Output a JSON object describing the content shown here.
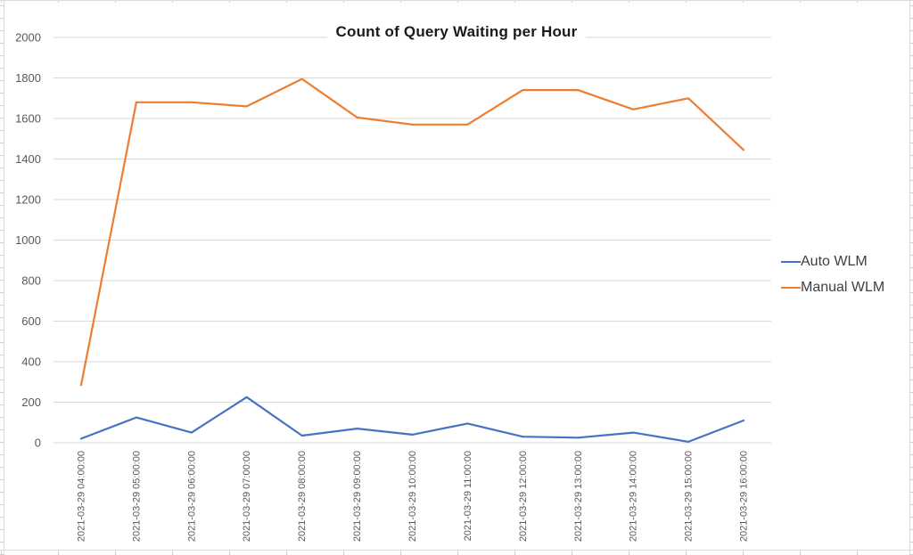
{
  "chart_data": {
    "type": "line",
    "title": "Count of Query Waiting per Hour",
    "categories": [
      "2021-03-29 04:00:00",
      "2021-03-29 05:00:00",
      "2021-03-29 06:00:00",
      "2021-03-29 07:00:00",
      "2021-03-29 08:00:00",
      "2021-03-29 09:00:00",
      "2021-03-29 10:00:00",
      "2021-03-29 11:00:00",
      "2021-03-29 12:00:00",
      "2021-03-29 13:00:00",
      "2021-03-29 14:00:00",
      "2021-03-29 15:00:00",
      "2021-03-29 16:00:00"
    ],
    "series": [
      {
        "name": "Auto WLM",
        "color": "#4472C4",
        "values": [
          20,
          125,
          50,
          225,
          35,
          70,
          40,
          95,
          30,
          25,
          50,
          5,
          110
        ]
      },
      {
        "name": "Manual WLM",
        "color": "#ED7D31",
        "values": [
          285,
          1680,
          1680,
          1660,
          1795,
          1605,
          1570,
          1570,
          1740,
          1740,
          1645,
          1700,
          1445
        ]
      }
    ],
    "xlabel": "",
    "ylabel": "",
    "ylim": [
      0,
      2000
    ],
    "yticks": [
      0,
      200,
      400,
      600,
      800,
      1000,
      1200,
      1400,
      1600,
      1800,
      2000
    ],
    "grid": true,
    "legend_position": "right"
  },
  "colors": {
    "grid_line": "#D9D9D9",
    "axis_text": "#595959",
    "title_text": "#1a1a1a",
    "legend_text": "#3f3f3f",
    "sheet_grid": "#dadada",
    "background": "#FFFFFF"
  }
}
